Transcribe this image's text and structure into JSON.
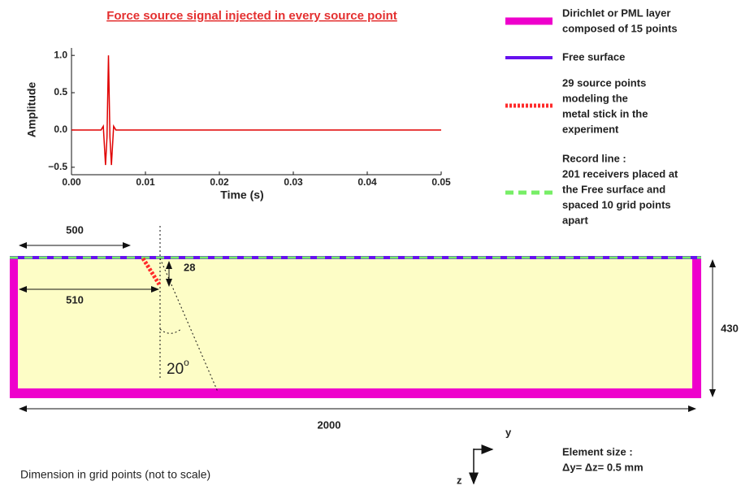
{
  "signal_plot": {
    "type": "line",
    "title": "Force source signal injected in every source point",
    "x_label": "Time (s)",
    "y_label": "Amplitude",
    "x": [
      0,
      0.004,
      0.0043,
      0.0046,
      0.0048,
      0.005,
      0.0052,
      0.0054,
      0.0057,
      0.006,
      0.05
    ],
    "values": [
      0,
      0,
      0.05,
      -0.47,
      -0.1,
      1.0,
      -0.1,
      -0.47,
      0.05,
      0,
      0
    ],
    "color": "#e00000",
    "xlim": [
      0,
      0.05
    ],
    "ylim": [
      -0.6,
      1.1
    ],
    "xticks": [
      {
        "value": 0,
        "label": "0.00"
      },
      {
        "value": 0.01,
        "label": "0.01"
      },
      {
        "value": 0.02,
        "label": "0.02"
      },
      {
        "value": 0.03,
        "label": "0.03"
      },
      {
        "value": 0.04,
        "label": "0.04"
      },
      {
        "value": 0.05,
        "label": "0.05"
      }
    ],
    "yticks": [
      {
        "value": -0.5,
        "label": "−0.5"
      },
      {
        "value": 0,
        "label": "0.0"
      },
      {
        "value": 0.5,
        "label": "0.5"
      },
      {
        "value": 1,
        "label": "1.0"
      }
    ]
  },
  "legend": [
    {
      "lines": [
        "Dirichlet or PML layer",
        "composed of 15 points"
      ]
    },
    {
      "lines": [
        "Free surface"
      ]
    },
    {
      "lines": [
        "29 source points",
        "modeling the",
        "metal stick in the",
        "experiment"
      ]
    },
    {
      "lines": [
        "Record line :",
        "201 receivers placed at",
        "the Free surface and",
        "spaced 10 grid points",
        "apart"
      ]
    }
  ],
  "dimensions": {
    "source_offset": "500",
    "stick_base_offset": "510",
    "stick_depth": "28",
    "depth": "430",
    "width": "2000",
    "angle": "20",
    "angle_unit": "o"
  },
  "axes_labels": {
    "y": "y",
    "z": "z"
  },
  "element_size": [
    "Element size :",
    "Δy= Δz= 0.5 mm"
  ],
  "note": "Dimension in grid points (not to scale)"
}
